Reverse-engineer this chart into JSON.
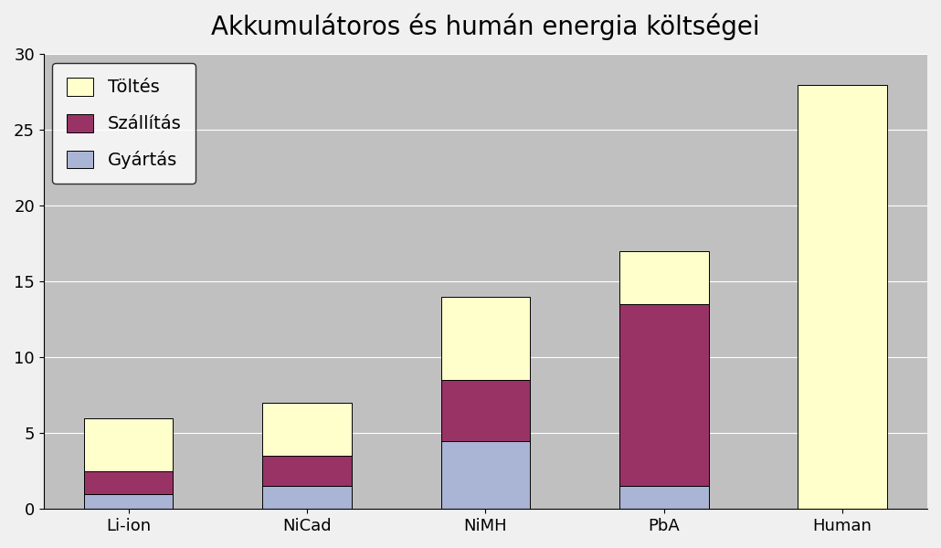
{
  "categories": [
    "Li-ion",
    "NiCad",
    "NiMH",
    "PbA",
    "Human"
  ],
  "gyartas": [
    1.0,
    1.5,
    4.5,
    1.5,
    0.0
  ],
  "szallitas": [
    1.5,
    2.0,
    4.0,
    12.0,
    0.0
  ],
  "toltes": [
    3.5,
    3.5,
    5.5,
    3.5,
    28.0
  ],
  "color_gyartas": "#aab4d4",
  "color_szallitas": "#993366",
  "color_toltes": "#ffffcc",
  "title": "Akkumulátoros és humán energia költségei",
  "legend_labels": [
    "Töltés",
    "Szállítás",
    "Gyártás"
  ],
  "ylim": [
    0,
    30
  ],
  "yticks": [
    0,
    5,
    10,
    15,
    20,
    25,
    30
  ],
  "background_color": "#c0c0c0",
  "plot_bg_color": "#c0c0c0",
  "title_fontsize": 20,
  "tick_fontsize": 13,
  "legend_fontsize": 14,
  "bar_width": 0.5
}
